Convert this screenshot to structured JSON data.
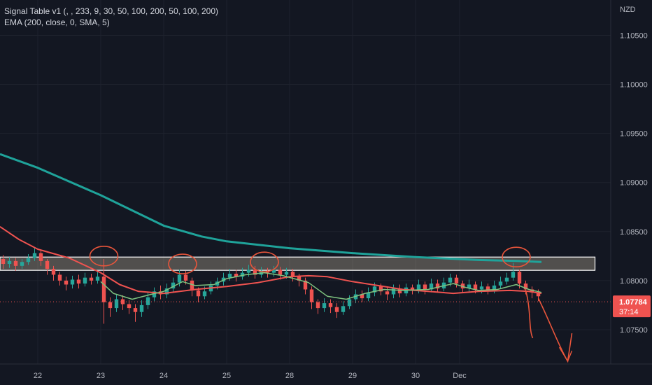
{
  "legend": {
    "line1": "Signal Table v1 (, , 233, 9, 30, 50, 100, 200, 50, 100, 200)",
    "line2": "EMA (200, close, 0, SMA, 5)"
  },
  "currency": "NZD",
  "price_label": {
    "price": "1.07784",
    "countdown": "37:14"
  },
  "colors": {
    "background": "#131722",
    "grid": "#1e222d",
    "ema200": "#1fa39a",
    "ema_mid": "#f05350",
    "ema_fast": "#7fc37f",
    "candle_up": "#26a69a",
    "candle_down": "#ef5350",
    "zone_fill": "#f3e3c0",
    "annotation": "#e8553b",
    "current_price": "#ef5350"
  },
  "chart_data": {
    "type": "candlestick",
    "y_axis": {
      "min": 1.0715,
      "max": 1.1086,
      "ticks": [
        "1.10500",
        "1.10000",
        "1.09500",
        "1.09000",
        "1.08500",
        "1.08000",
        "1.07500"
      ]
    },
    "x_axis": {
      "min": 21.4,
      "max": 31.1,
      "ticks": [
        "22",
        "23",
        "24",
        "25",
        "28",
        "29",
        "30",
        "Dec"
      ]
    },
    "ema200": [
      [
        21.4,
        1.0929
      ],
      [
        22.0,
        1.0915
      ],
      [
        23.0,
        1.0887
      ],
      [
        24.0,
        1.0856
      ],
      [
        24.6,
        1.0845
      ],
      [
        25.0,
        1.084
      ],
      [
        26.0,
        1.0833
      ],
      [
        27.0,
        1.0828
      ],
      [
        28.0,
        1.0824
      ],
      [
        29.0,
        1.0821
      ],
      [
        29.6,
        1.082
      ],
      [
        30.0,
        1.0819
      ]
    ],
    "ema_mid": [
      [
        21.4,
        1.0855
      ],
      [
        21.7,
        1.0842
      ],
      [
        22.0,
        1.0832
      ],
      [
        22.5,
        1.0823
      ],
      [
        23.0,
        1.0808
      ],
      [
        23.3,
        1.0796
      ],
      [
        23.6,
        1.0789
      ],
      [
        24.0,
        1.0787
      ],
      [
        24.5,
        1.0791
      ],
      [
        25.0,
        1.0794
      ],
      [
        25.5,
        1.0798
      ],
      [
        26.0,
        1.0804
      ],
      [
        26.3,
        1.0805
      ],
      [
        26.6,
        1.0804
      ],
      [
        27.0,
        1.0799
      ],
      [
        27.4,
        1.0795
      ],
      [
        27.8,
        1.0791
      ],
      [
        28.2,
        1.0789
      ],
      [
        28.6,
        1.0787
      ],
      [
        29.0,
        1.0789
      ],
      [
        29.5,
        1.079
      ],
      [
        29.8,
        1.0789
      ],
      [
        30.0,
        1.0787
      ]
    ],
    "ema_fast": [
      [
        23.0,
        1.0799
      ],
      [
        23.2,
        1.0787
      ],
      [
        23.5,
        1.0781
      ],
      [
        23.8,
        1.0786
      ],
      [
        24.0,
        1.0789
      ],
      [
        24.3,
        1.0799
      ],
      [
        24.5,
        1.0795
      ],
      [
        24.8,
        1.0796
      ],
      [
        25.0,
        1.0802
      ],
      [
        25.3,
        1.0806
      ],
      [
        25.6,
        1.0808
      ],
      [
        25.9,
        1.0805
      ],
      [
        26.3,
        1.0798
      ],
      [
        26.6,
        1.0784
      ],
      [
        26.9,
        1.0781
      ],
      [
        27.2,
        1.0787
      ],
      [
        27.5,
        1.0791
      ],
      [
        27.8,
        1.079
      ],
      [
        28.2,
        1.0791
      ],
      [
        28.6,
        1.0797
      ],
      [
        28.8,
        1.0793
      ],
      [
        29.0,
        1.079
      ],
      [
        29.3,
        1.0791
      ],
      [
        29.6,
        1.0796
      ],
      [
        29.8,
        1.0791
      ],
      [
        30.0,
        1.0788
      ]
    ],
    "candles": [
      [
        21.45,
        1.0822,
        1.0817,
        1.0826,
        1.0812
      ],
      [
        21.55,
        1.0817,
        1.082,
        1.0824,
        1.0813
      ],
      [
        21.65,
        1.082,
        1.0815,
        1.0823,
        1.081
      ],
      [
        21.75,
        1.0815,
        1.0819,
        1.0822,
        1.0812
      ],
      [
        21.85,
        1.0819,
        1.0823,
        1.0827,
        1.0816
      ],
      [
        21.95,
        1.0823,
        1.0828,
        1.0833,
        1.082
      ],
      [
        22.05,
        1.0828,
        1.082,
        1.0831,
        1.0815
      ],
      [
        22.15,
        1.082,
        1.0812,
        1.0822,
        1.0806
      ],
      [
        22.25,
        1.0812,
        1.0806,
        1.0815,
        1.08
      ],
      [
        22.35,
        1.0806,
        1.08,
        1.0809,
        1.0795
      ],
      [
        22.45,
        1.08,
        1.0796,
        1.0804,
        1.079
      ],
      [
        22.55,
        1.0796,
        1.0801,
        1.0805,
        1.0792
      ],
      [
        22.65,
        1.0801,
        1.0797,
        1.0806,
        1.0792
      ],
      [
        22.75,
        1.0797,
        1.0803,
        1.0808,
        1.0794
      ],
      [
        22.85,
        1.0803,
        1.08,
        1.0807,
        1.0796
      ],
      [
        22.95,
        1.08,
        1.0804,
        1.081,
        1.0797
      ],
      [
        23.05,
        1.0804,
        1.0778,
        1.0822,
        1.0756
      ],
      [
        23.15,
        1.0778,
        1.0772,
        1.0783,
        1.0763
      ],
      [
        23.25,
        1.0772,
        1.0781,
        1.0786,
        1.0768
      ],
      [
        23.35,
        1.0781,
        1.0776,
        1.0785,
        1.077
      ],
      [
        23.45,
        1.0776,
        1.0772,
        1.078,
        1.0766
      ],
      [
        23.55,
        1.0772,
        1.0768,
        1.0776,
        1.0758
      ],
      [
        23.65,
        1.0768,
        1.0775,
        1.078,
        1.0763
      ],
      [
        23.75,
        1.0775,
        1.0783,
        1.0788,
        1.0771
      ],
      [
        23.85,
        1.0783,
        1.0789,
        1.0793,
        1.0779
      ],
      [
        23.95,
        1.0789,
        1.0786,
        1.0795,
        1.0781
      ],
      [
        24.05,
        1.0786,
        1.0792,
        1.0797,
        1.0782
      ],
      [
        24.15,
        1.0792,
        1.0798,
        1.0803,
        1.0788
      ],
      [
        24.25,
        1.0798,
        1.0806,
        1.0811,
        1.0794
      ],
      [
        24.35,
        1.0806,
        1.08,
        1.081,
        1.0796
      ],
      [
        24.45,
        1.08,
        1.079,
        1.0803,
        1.0784
      ],
      [
        24.55,
        1.079,
        1.0784,
        1.0793,
        1.0778
      ],
      [
        24.65,
        1.0784,
        1.0789,
        1.0794,
        1.0781
      ],
      [
        24.75,
        1.0789,
        1.0795,
        1.0799,
        1.0786
      ],
      [
        24.85,
        1.0795,
        1.0799,
        1.0803,
        1.0791
      ],
      [
        24.95,
        1.0799,
        1.0803,
        1.0808,
        1.0795
      ],
      [
        25.05,
        1.0803,
        1.0807,
        1.0812,
        1.08
      ],
      [
        25.15,
        1.0807,
        1.0804,
        1.0811,
        1.0799
      ],
      [
        25.25,
        1.0804,
        1.0808,
        1.0813,
        1.0801
      ],
      [
        25.35,
        1.0808,
        1.0811,
        1.0816,
        1.0804
      ],
      [
        25.45,
        1.0811,
        1.0806,
        1.0815,
        1.0802
      ],
      [
        25.55,
        1.0806,
        1.081,
        1.0814,
        1.0803
      ],
      [
        25.65,
        1.081,
        1.0808,
        1.0813,
        1.0803
      ],
      [
        25.75,
        1.0808,
        1.0811,
        1.0815,
        1.0804
      ],
      [
        25.85,
        1.0811,
        1.0806,
        1.0814,
        1.0801
      ],
      [
        25.95,
        1.0806,
        1.0809,
        1.0813,
        1.0802
      ],
      [
        26.05,
        1.0809,
        1.0804,
        1.0812,
        1.0799
      ],
      [
        26.15,
        1.0804,
        1.08,
        1.0807,
        1.0794
      ],
      [
        26.25,
        1.08,
        1.0791,
        1.0803,
        1.0786
      ],
      [
        26.35,
        1.0791,
        1.0778,
        1.0794,
        1.0771
      ],
      [
        26.45,
        1.0778,
        1.0772,
        1.0781,
        1.0766
      ],
      [
        26.55,
        1.0772,
        1.0777,
        1.0782,
        1.0768
      ],
      [
        26.65,
        1.0777,
        1.0773,
        1.0781,
        1.0767
      ],
      [
        26.75,
        1.0773,
        1.0768,
        1.0777,
        1.0762
      ],
      [
        26.85,
        1.0768,
        1.0774,
        1.0779,
        1.0765
      ],
      [
        26.95,
        1.0774,
        1.0781,
        1.0785,
        1.0771
      ],
      [
        27.05,
        1.0781,
        1.0786,
        1.0791,
        1.0777
      ],
      [
        27.15,
        1.0786,
        1.0782,
        1.079,
        1.0778
      ],
      [
        27.25,
        1.0782,
        1.0788,
        1.0793,
        1.0779
      ],
      [
        27.35,
        1.0788,
        1.0794,
        1.0798,
        1.0784
      ],
      [
        27.45,
        1.0794,
        1.0789,
        1.0797,
        1.0785
      ],
      [
        27.55,
        1.0789,
        1.0786,
        1.0793,
        1.078
      ],
      [
        27.65,
        1.0786,
        1.0792,
        1.0796,
        1.0782
      ],
      [
        27.75,
        1.0792,
        1.0787,
        1.0796,
        1.0783
      ],
      [
        27.85,
        1.0787,
        1.0793,
        1.0797,
        1.0784
      ],
      [
        27.95,
        1.0793,
        1.079,
        1.0796,
        1.0786
      ],
      [
        28.05,
        1.079,
        1.0796,
        1.0801,
        1.0787
      ],
      [
        28.15,
        1.0796,
        1.0791,
        1.0799,
        1.0786
      ],
      [
        28.25,
        1.0791,
        1.0797,
        1.0802,
        1.0788
      ],
      [
        28.35,
        1.0797,
        1.0792,
        1.0801,
        1.0788
      ],
      [
        28.45,
        1.0792,
        1.0798,
        1.0803,
        1.0789
      ],
      [
        28.55,
        1.0798,
        1.0803,
        1.0807,
        1.0794
      ],
      [
        28.65,
        1.0803,
        1.0797,
        1.0806,
        1.0793
      ],
      [
        28.75,
        1.0797,
        1.0792,
        1.08,
        1.0788
      ],
      [
        28.85,
        1.0792,
        1.0796,
        1.0801,
        1.0789
      ],
      [
        28.95,
        1.0796,
        1.0791,
        1.0799,
        1.0787
      ],
      [
        29.05,
        1.0791,
        1.0794,
        1.0799,
        1.0787
      ],
      [
        29.15,
        1.0794,
        1.0789,
        1.0797,
        1.0786
      ],
      [
        29.25,
        1.0789,
        1.0795,
        1.08,
        1.0787
      ],
      [
        29.35,
        1.0795,
        1.0799,
        1.0804,
        1.0792
      ],
      [
        29.45,
        1.0799,
        1.0803,
        1.0808,
        1.0796
      ],
      [
        29.55,
        1.0803,
        1.0809,
        1.0818,
        1.08
      ],
      [
        29.65,
        1.0809,
        1.0797,
        1.0811,
        1.0792
      ],
      [
        29.75,
        1.0797,
        1.0791,
        1.08,
        1.0786
      ],
      [
        29.85,
        1.0791,
        1.0788,
        1.0794,
        1.0782
      ],
      [
        29.95,
        1.0788,
        1.0784,
        1.0791,
        1.0779
      ]
    ],
    "resistance_zone": {
      "x_start": 21.4,
      "x_end": 30.85,
      "y_low": 1.08105,
      "y_high": 1.0824
    },
    "annotation_circles": [
      [
        23.05,
        1.0825
      ],
      [
        24.3,
        1.0817
      ],
      [
        25.6,
        1.0819
      ],
      [
        29.6,
        1.0824
      ]
    ],
    "current_price": 1.07784
  }
}
